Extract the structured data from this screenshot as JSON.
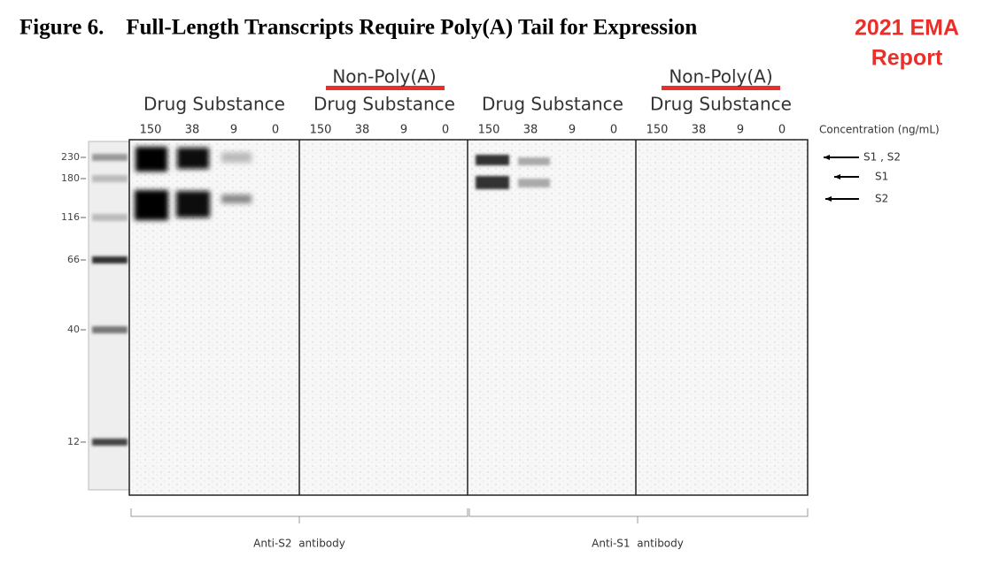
{
  "header": {
    "title": "Figure 6.    Full-Length Transcripts Require Poly(A) Tail for Expression",
    "badge": [
      "2021 EMA",
      "Report"
    ]
  },
  "markers": [
    "230",
    "180",
    "116",
    "66",
    "40",
    "12"
  ],
  "concentration_label": "Concentration (ng/mL)",
  "panels": [
    {
      "headings": [
        "Drug Substance"
      ],
      "lanes": [
        "150",
        "38",
        "9",
        "0"
      ]
    },
    {
      "headings": [
        "Non-Poly(A)",
        "Drug Substance"
      ],
      "lanes": [
        "150",
        "38",
        "9",
        "0"
      ]
    },
    {
      "headings": [
        "Drug Substance"
      ],
      "lanes": [
        "150",
        "38",
        "9",
        "0"
      ]
    },
    {
      "headings": [
        "Non-Poly(A)",
        "Drug Substance"
      ],
      "lanes": [
        "150",
        "38",
        "9",
        "0"
      ]
    }
  ],
  "band_labels": [
    "S1 , S2",
    "S1",
    "S2"
  ],
  "antibodies": [
    "Anti-S2  antibody",
    "Anti-S1  antibody"
  ]
}
